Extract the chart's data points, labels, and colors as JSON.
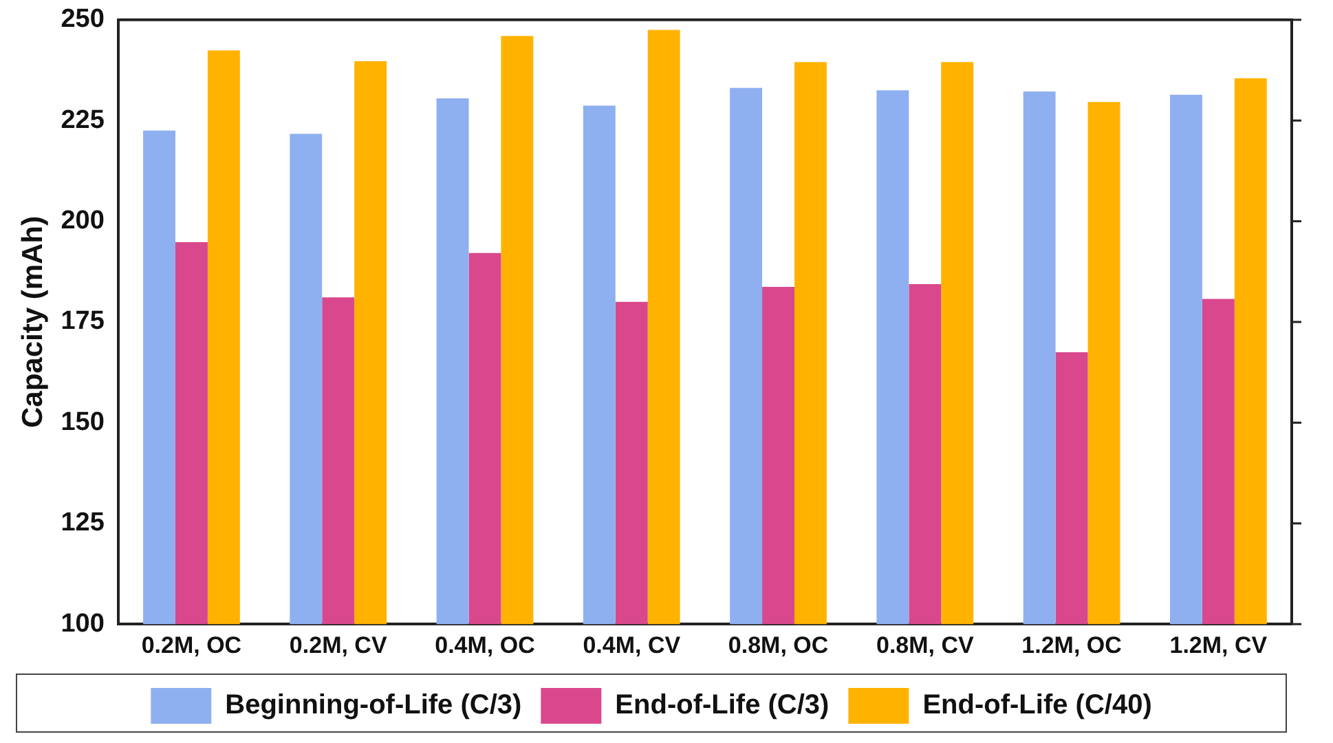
{
  "chart_data": {
    "type": "bar",
    "ylabel": "Capacity (mAh)",
    "categories": [
      "0.2M, OC",
      "0.2M, CV",
      "0.4M, OC",
      "0.4M, CV",
      "0.8M, OC",
      "0.8M, CV",
      "1.2M, OC",
      "1.2M, CV"
    ],
    "series": [
      {
        "name": "Beginning-of-Life (C/3)",
        "color": "#8fb0f0",
        "values": [
          222.5,
          221.7,
          230.5,
          228.7,
          233.1,
          232.5,
          232.2,
          231.4
        ]
      },
      {
        "name": "End-of-Life (C/3)",
        "color": "#d9488c",
        "values": [
          194.8,
          181.1,
          192.1,
          180.0,
          183.7,
          184.4,
          167.5,
          180.7
        ]
      },
      {
        "name": "End-of-Life (C/40)",
        "color": "#ffb300",
        "values": [
          242.4,
          239.7,
          246.0,
          247.5,
          239.5,
          239.5,
          229.6,
          235.5
        ]
      }
    ],
    "ylim": [
      100,
      250
    ],
    "yticks": [
      100,
      125,
      150,
      175,
      200,
      225,
      250
    ],
    "grid": false,
    "legend": "bottom"
  }
}
